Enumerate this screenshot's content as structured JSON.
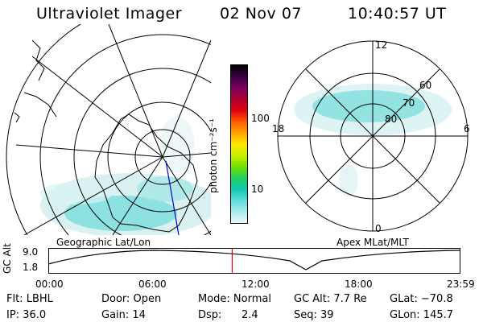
{
  "header": {
    "title": "Ultraviolet Imager",
    "date": "02 Nov 07",
    "time": "10:40:57 UT"
  },
  "colorbar": {
    "unit_label": "photon cm⁻²s⁻¹",
    "ticks": [
      "100",
      "10"
    ],
    "colors": [
      "#000000",
      "#3a0040",
      "#7a0060",
      "#b00030",
      "#e00010",
      "#ff5a00",
      "#ffa000",
      "#ffe600",
      "#c8f000",
      "#70e000",
      "#20d060",
      "#10c8b0",
      "#60dcdc",
      "#a8ecec",
      "#e8f8f8"
    ]
  },
  "geo_map": {
    "caption": "Geographic Lat/Lon"
  },
  "polar_map": {
    "caption": "Apex MLat/MLT",
    "mlt_labels": {
      "top": "12",
      "bottom": "0",
      "left": "18",
      "right": "6"
    },
    "lat_labels": [
      "60",
      "70",
      "80"
    ]
  },
  "altitude_plot": {
    "ylabel": "GC Alt",
    "ytick_top": "9.0",
    "ytick_bottom": "1.8",
    "time_ticks": [
      "00:00",
      "06:00",
      "12:00",
      "18:00",
      "23:59"
    ],
    "current_time_marker_fraction": 0.446
  },
  "footer": {
    "row1": {
      "filter": "Flt: LBHL",
      "door": "Door: Open",
      "mode": "Mode: Normal",
      "gc_alt": "GC Alt: 7.7 Re",
      "glat": "GLat: −70.8"
    },
    "row2": {
      "ip": "IP: 36.0",
      "gain": "Gain: 14",
      "dsp_label": "Dsp:",
      "dsp_value": "2.4",
      "seq": "Seq: 39",
      "glon": "GLon: 145.7"
    }
  }
}
